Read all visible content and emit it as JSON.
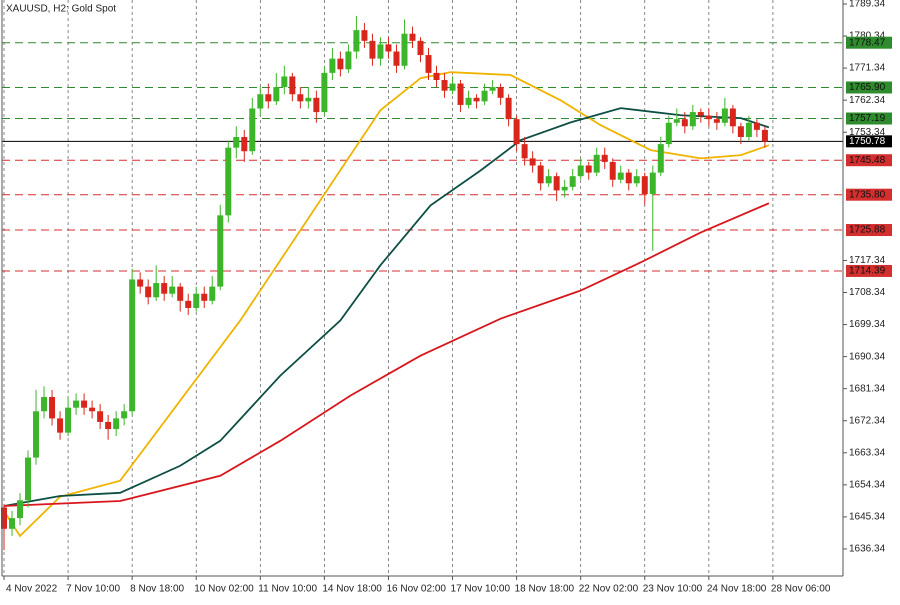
{
  "chart_data": {
    "type": "candlestick",
    "title": "XAUUSD, H2:  Gold Spot",
    "up_color": "#3cb52a",
    "down_color": "#d9261c",
    "grid": true,
    "xlim": [
      -0.5,
      209.5
    ],
    "ylim": [
      1628.75,
      1790.46
    ],
    "xticks": [
      {
        "value": 0,
        "label": "4 Nov 2022"
      },
      {
        "value": 16,
        "label": "7 Nov 10:00"
      },
      {
        "value": 32,
        "label": "8 Nov 18:00"
      },
      {
        "value": 48,
        "label": "10 Nov 02:00"
      },
      {
        "value": 64,
        "label": "11 Nov 10:00"
      },
      {
        "value": 80,
        "label": "14 Nov 18:00"
      },
      {
        "value": 96,
        "label": "16 Nov 02:00"
      },
      {
        "value": 112,
        "label": "17 Nov 10:00"
      },
      {
        "value": 128,
        "label": "18 Nov 18:00"
      },
      {
        "value": 144,
        "label": "22 Nov 02:00"
      },
      {
        "value": 160,
        "label": "23 Nov 10:00"
      },
      {
        "value": 176,
        "label": "24 Nov 18:00"
      },
      {
        "value": 192,
        "label": "28 Nov 06:00"
      }
    ],
    "yticks": [
      1789.34,
      1780.34,
      1771.34,
      1762.34,
      1753.34,
      1717.34,
      1708.34,
      1699.34,
      1690.34,
      1681.34,
      1672.34,
      1663.34,
      1654.34,
      1645.34,
      1636.34
    ],
    "resistance_levels": [
      1778.47,
      {
        "value": 1765.9,
        "label": "1765.90"
      },
      1757.19
    ],
    "resistance_color": "#2e8b2e",
    "support_levels": [
      1745.48,
      {
        "value": 1735.8,
        "label": "1735.80"
      },
      1725.88,
      1714.39
    ],
    "support_color": "#d32f2f",
    "x": [
      0,
      2,
      4,
      6,
      8,
      10,
      12,
      14,
      16,
      18,
      20,
      22,
      24,
      26,
      28,
      30,
      32,
      34,
      36,
      38,
      40,
      42,
      44,
      46,
      48,
      50,
      52,
      54,
      56,
      58,
      60,
      62,
      64,
      66,
      68,
      70,
      72,
      74,
      76,
      78,
      80,
      82,
      84,
      86,
      88,
      90,
      92,
      94,
      96,
      98,
      100,
      102,
      104,
      106,
      108,
      110,
      112,
      114,
      116,
      118,
      120,
      122,
      124,
      126,
      128,
      130,
      132,
      134,
      136,
      138,
      140,
      142,
      144,
      146,
      148,
      150,
      152,
      154,
      156,
      158,
      160,
      162,
      164,
      166,
      168,
      170,
      172,
      174,
      176,
      178,
      180,
      182,
      184,
      186,
      188,
      190
    ],
    "ohlc": [
      [
        1648,
        1649,
        1636,
        1642
      ],
      [
        1642,
        1647,
        1640,
        1645
      ],
      [
        1645,
        1652,
        1643,
        1650
      ],
      [
        1650,
        1664,
        1648,
        1662
      ],
      [
        1662,
        1681,
        1660,
        1675
      ],
      [
        1675,
        1682,
        1673,
        1679
      ],
      [
        1679,
        1681,
        1671,
        1673
      ],
      [
        1673,
        1675,
        1667,
        1669
      ],
      [
        1669,
        1679,
        1668,
        1676
      ],
      [
        1676,
        1680,
        1674,
        1678
      ],
      [
        1678,
        1680,
        1674,
        1676
      ],
      [
        1676,
        1678,
        1673,
        1675
      ],
      [
        1675,
        1677,
        1670,
        1672
      ],
      [
        1672,
        1674,
        1667,
        1670
      ],
      [
        1670,
        1675,
        1668,
        1673
      ],
      [
        1673,
        1677,
        1671,
        1675
      ],
      [
        1675,
        1715,
        1674,
        1712
      ],
      [
        1712,
        1714,
        1708,
        1710
      ],
      [
        1710,
        1712,
        1705,
        1707
      ],
      [
        1707,
        1716,
        1706,
        1711
      ],
      [
        1711,
        1713,
        1706,
        1708
      ],
      [
        1708,
        1713,
        1707,
        1710
      ],
      [
        1710,
        1711,
        1703,
        1706
      ],
      [
        1706,
        1708,
        1702,
        1704
      ],
      [
        1704,
        1710,
        1703,
        1708
      ],
      [
        1708,
        1710,
        1704,
        1706
      ],
      [
        1706,
        1713,
        1705,
        1710
      ],
      [
        1710,
        1733,
        1709,
        1730
      ],
      [
        1730,
        1751,
        1728,
        1749
      ],
      [
        1749,
        1755,
        1746,
        1752
      ],
      [
        1752,
        1754,
        1745,
        1748
      ],
      [
        1748,
        1763,
        1747,
        1760
      ],
      [
        1760,
        1766,
        1758,
        1764
      ],
      [
        1764,
        1767,
        1760,
        1762
      ],
      [
        1762,
        1770,
        1761,
        1766
      ],
      [
        1766,
        1772,
        1764,
        1769
      ],
      [
        1769,
        1770,
        1762,
        1764
      ],
      [
        1764,
        1766,
        1760,
        1762
      ],
      [
        1762,
        1766,
        1760,
        1763
      ],
      [
        1763,
        1765,
        1756,
        1759
      ],
      [
        1759,
        1772,
        1758,
        1770
      ],
      [
        1770,
        1777,
        1768,
        1774
      ],
      [
        1774,
        1776,
        1769,
        1771
      ],
      [
        1771,
        1778,
        1770,
        1776
      ],
      [
        1776,
        1786,
        1774,
        1782
      ],
      [
        1782,
        1784,
        1777,
        1779
      ],
      [
        1779,
        1781,
        1772,
        1774
      ],
      [
        1774,
        1780,
        1772,
        1778
      ],
      [
        1778,
        1780,
        1774,
        1776
      ],
      [
        1776,
        1778,
        1770,
        1772
      ],
      [
        1772,
        1785,
        1771,
        1781
      ],
      [
        1781,
        1783,
        1777,
        1779
      ],
      [
        1779,
        1780,
        1773,
        1775
      ],
      [
        1775,
        1777,
        1768,
        1770
      ],
      [
        1770,
        1772,
        1766,
        1768
      ],
      [
        1768,
        1770,
        1763,
        1765
      ],
      [
        1765,
        1769,
        1764,
        1767
      ],
      [
        1767,
        1768,
        1759,
        1761
      ],
      [
        1761,
        1765,
        1760,
        1763
      ],
      [
        1763,
        1764,
        1760,
        1762
      ],
      [
        1762,
        1767,
        1761,
        1765
      ],
      [
        1765,
        1768,
        1764,
        1766
      ],
      [
        1766,
        1767,
        1761,
        1763
      ],
      [
        1763,
        1764,
        1755,
        1757
      ],
      [
        1757,
        1758,
        1748,
        1750
      ],
      [
        1750,
        1752,
        1744,
        1746
      ],
      [
        1746,
        1748,
        1742,
        1744
      ],
      [
        1744,
        1745,
        1737,
        1739
      ],
      [
        1739,
        1743,
        1738,
        1741
      ],
      [
        1741,
        1742,
        1734,
        1737
      ],
      [
        1737,
        1740,
        1735,
        1738
      ],
      [
        1738,
        1743,
        1737,
        1741
      ],
      [
        1741,
        1746,
        1740,
        1744
      ],
      [
        1744,
        1745,
        1740,
        1742
      ],
      [
        1742,
        1749,
        1741,
        1747
      ],
      [
        1747,
        1749,
        1743,
        1745
      ],
      [
        1745,
        1746,
        1738,
        1740
      ],
      [
        1740,
        1744,
        1739,
        1742
      ],
      [
        1742,
        1743,
        1737,
        1739
      ],
      [
        1739,
        1743,
        1738,
        1741
      ],
      [
        1741,
        1742,
        1733,
        1736
      ],
      [
        1736,
        1744,
        1720,
        1742
      ],
      [
        1742,
        1752,
        1741,
        1750
      ],
      [
        1750,
        1758,
        1749,
        1756
      ],
      [
        1756,
        1760,
        1755,
        1757
      ],
      [
        1757,
        1759,
        1753,
        1755
      ],
      [
        1755,
        1761,
        1754,
        1759
      ],
      [
        1759,
        1760,
        1756,
        1758
      ],
      [
        1758,
        1760,
        1755,
        1757
      ],
      [
        1757,
        1759,
        1754,
        1756
      ],
      [
        1756,
        1763,
        1755,
        1760
      ],
      [
        1760,
        1761,
        1753,
        1755
      ],
      [
        1755,
        1756,
        1750,
        1752
      ],
      [
        1752,
        1758,
        1751,
        1756
      ],
      [
        1756,
        1757,
        1752,
        1754
      ],
      [
        1754,
        1755,
        1749,
        1750.78
      ]
    ],
    "series": [
      {
        "color": "#f0b400",
        "x": [
          0,
          4,
          14,
          29,
          44,
          59,
          74,
          84,
          94,
          104,
          111.5,
          126.5,
          139,
          149,
          161.5,
          174,
          184,
          191
        ],
        "values": [
          1647,
          1640,
          1651,
          1655.5,
          1678,
          1700.5,
          1725.8,
          1742.7,
          1759.5,
          1768.5,
          1770.2,
          1769.4,
          1762.3,
          1755.3,
          1748.3,
          1746,
          1746.9,
          1749.7
        ]
      },
      {
        "color": "#0d4f45",
        "x": [
          0,
          14,
          29,
          44,
          54,
          69,
          84,
          94,
          106.5,
          119,
          129,
          141.5,
          154,
          169,
          184,
          191
        ],
        "values": [
          1648.4,
          1651.2,
          1652.1,
          1659.7,
          1666.7,
          1685,
          1700.5,
          1716,
          1732.8,
          1742.6,
          1751.1,
          1756.1,
          1760.1,
          1758.1,
          1757.3,
          1754.7
        ]
      },
      {
        "color": "#d9161c",
        "x": [
          0,
          29,
          54,
          69,
          86.5,
          104,
          124,
          144,
          159,
          174,
          191
        ],
        "values": [
          1648.4,
          1649.8,
          1656.9,
          1666.7,
          1679.4,
          1690.6,
          1701,
          1708.9,
          1716.8,
          1725.2,
          1733.4
        ]
      }
    ]
  }
}
